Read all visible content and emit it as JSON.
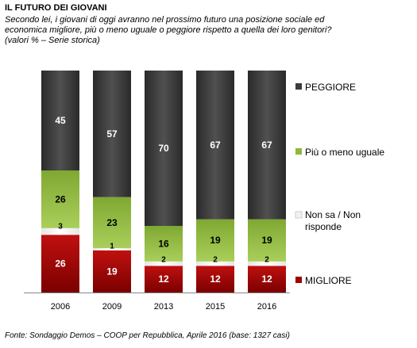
{
  "header": {
    "title": "IL FUTURO DEI GIOVANI",
    "subtitle": "Secondo lei,  i giovani di oggi avranno nel prossimo futuro una posizione sociale ed\neconomica migliore, più o meno uguale o peggiore rispetto a quella dei loro genitori?\n(valori % – Serie storica)"
  },
  "footer": {
    "source": "Fonte: Sondaggio Demos – COOP per Repubblica, Aprile 2016 (base: 1327 casi)"
  },
  "chart_data": {
    "type": "bar",
    "stacked": true,
    "categories": [
      "2006",
      "2009",
      "2013",
      "2015",
      "2016"
    ],
    "ylim": [
      0,
      100
    ],
    "grid": false,
    "legend_position": "right",
    "series": [
      {
        "name": "MIGLIORE",
        "values": [
          26,
          19,
          12,
          12,
          12
        ],
        "color": "#a00000"
      },
      {
        "name": "Non sa / Non risponde",
        "values": [
          3,
          1,
          2,
          2,
          2
        ],
        "color": "#f2f2f2"
      },
      {
        "name": "Più o meno uguale",
        "values": [
          26,
          23,
          16,
          19,
          19
        ],
        "color": "#8db83a"
      },
      {
        "name": "PEGGIORE",
        "values": [
          45,
          57,
          70,
          67,
          67
        ],
        "color": "#3c3c3c"
      }
    ],
    "legend_order": [
      "PEGGIORE",
      "Più o meno uguale",
      "Non sa / Non risponde",
      "MIGLIORE"
    ]
  }
}
